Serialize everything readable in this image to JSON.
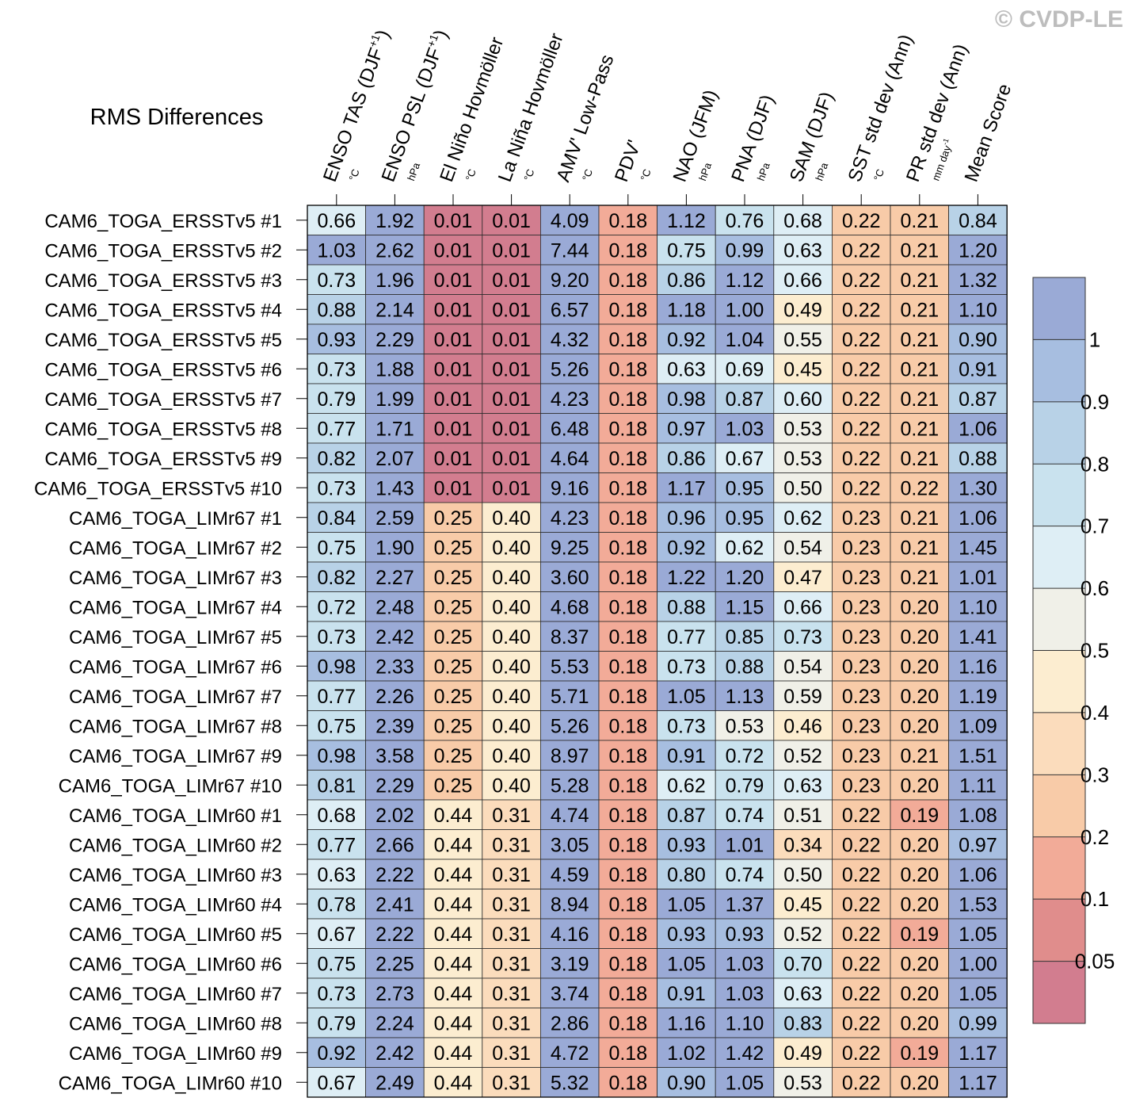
{
  "watermark": "© CVDP-LE",
  "chart_data": {
    "type": "heatmap",
    "title": "RMS Differences",
    "columns": [
      {
        "label": "ENSO TAS (DJF",
        "sup": "+1",
        "close": ")",
        "unit": "°C"
      },
      {
        "label": "ENSO PSL (DJF",
        "sup": "+1",
        "close": ")",
        "unit": "hPa"
      },
      {
        "label": "El Niño Hovmöller",
        "unit": "°C"
      },
      {
        "label": "La Niña Hovmöller",
        "unit": "°C"
      },
      {
        "label": "AMV' Low-Pass",
        "unit": "°C"
      },
      {
        "label": "PDV'",
        "unit": "°C"
      },
      {
        "label": "NAO (JFM)",
        "unit": "hPa"
      },
      {
        "label": "PNA (DJF)",
        "unit": "hPa"
      },
      {
        "label": "SAM (DJF)",
        "unit": "hPa"
      },
      {
        "label": "SST std dev (Ann)",
        "unit": "°C"
      },
      {
        "label": "PR std dev (Ann)",
        "unit": "mm day",
        "unit_sup": "-1"
      },
      {
        "label": "Mean Score",
        "unit": ""
      }
    ],
    "rows": [
      "CAM6_TOGA_ERSSTv5 #1",
      "CAM6_TOGA_ERSSTv5 #2",
      "CAM6_TOGA_ERSSTv5 #3",
      "CAM6_TOGA_ERSSTv5 #4",
      "CAM6_TOGA_ERSSTv5 #5",
      "CAM6_TOGA_ERSSTv5 #6",
      "CAM6_TOGA_ERSSTv5 #7",
      "CAM6_TOGA_ERSSTv5 #8",
      "CAM6_TOGA_ERSSTv5 #9",
      "CAM6_TOGA_ERSSTv5 #10",
      "CAM6_TOGA_LIMr67 #1",
      "CAM6_TOGA_LIMr67 #2",
      "CAM6_TOGA_LIMr67 #3",
      "CAM6_TOGA_LIMr67 #4",
      "CAM6_TOGA_LIMr67 #5",
      "CAM6_TOGA_LIMr67 #6",
      "CAM6_TOGA_LIMr67 #7",
      "CAM6_TOGA_LIMr67 #8",
      "CAM6_TOGA_LIMr67 #9",
      "CAM6_TOGA_LIMr67 #10",
      "CAM6_TOGA_LIMr60 #1",
      "CAM6_TOGA_LIMr60 #2",
      "CAM6_TOGA_LIMr60 #3",
      "CAM6_TOGA_LIMr60 #4",
      "CAM6_TOGA_LIMr60 #5",
      "CAM6_TOGA_LIMr60 #6",
      "CAM6_TOGA_LIMr60 #7",
      "CAM6_TOGA_LIMr60 #8",
      "CAM6_TOGA_LIMr60 #9",
      "CAM6_TOGA_LIMr60 #10"
    ],
    "values": [
      [
        "0.66",
        "1.92",
        "0.01",
        "0.01",
        "4.09",
        "0.18",
        "1.12",
        "0.76",
        "0.68",
        "0.22",
        "0.21",
        "0.84"
      ],
      [
        "1.03",
        "2.62",
        "0.01",
        "0.01",
        "7.44",
        "0.18",
        "0.75",
        "0.99",
        "0.63",
        "0.22",
        "0.21",
        "1.20"
      ],
      [
        "0.73",
        "1.96",
        "0.01",
        "0.01",
        "9.20",
        "0.18",
        "0.86",
        "1.12",
        "0.66",
        "0.22",
        "0.21",
        "1.32"
      ],
      [
        "0.88",
        "2.14",
        "0.01",
        "0.01",
        "6.57",
        "0.18",
        "1.18",
        "1.00",
        "0.49",
        "0.22",
        "0.21",
        "1.10"
      ],
      [
        "0.93",
        "2.29",
        "0.01",
        "0.01",
        "4.32",
        "0.18",
        "0.92",
        "1.04",
        "0.55",
        "0.22",
        "0.21",
        "0.90"
      ],
      [
        "0.73",
        "1.88",
        "0.01",
        "0.01",
        "5.26",
        "0.18",
        "0.63",
        "0.69",
        "0.45",
        "0.22",
        "0.21",
        "0.91"
      ],
      [
        "0.79",
        "1.99",
        "0.01",
        "0.01",
        "4.23",
        "0.18",
        "0.98",
        "0.87",
        "0.60",
        "0.22",
        "0.21",
        "0.87"
      ],
      [
        "0.77",
        "1.71",
        "0.01",
        "0.01",
        "6.48",
        "0.18",
        "0.97",
        "1.03",
        "0.53",
        "0.22",
        "0.21",
        "1.06"
      ],
      [
        "0.82",
        "2.07",
        "0.01",
        "0.01",
        "4.64",
        "0.18",
        "0.86",
        "0.67",
        "0.53",
        "0.22",
        "0.21",
        "0.88"
      ],
      [
        "0.73",
        "1.43",
        "0.01",
        "0.01",
        "9.16",
        "0.18",
        "1.17",
        "0.95",
        "0.50",
        "0.22",
        "0.22",
        "1.30"
      ],
      [
        "0.84",
        "2.59",
        "0.25",
        "0.40",
        "4.23",
        "0.18",
        "0.96",
        "0.95",
        "0.62",
        "0.23",
        "0.21",
        "1.06"
      ],
      [
        "0.75",
        "1.90",
        "0.25",
        "0.40",
        "9.25",
        "0.18",
        "0.92",
        "0.62",
        "0.54",
        "0.23",
        "0.21",
        "1.45"
      ],
      [
        "0.82",
        "2.27",
        "0.25",
        "0.40",
        "3.60",
        "0.18",
        "1.22",
        "1.20",
        "0.47",
        "0.23",
        "0.21",
        "1.01"
      ],
      [
        "0.72",
        "2.48",
        "0.25",
        "0.40",
        "4.68",
        "0.18",
        "0.88",
        "1.15",
        "0.66",
        "0.23",
        "0.20",
        "1.10"
      ],
      [
        "0.73",
        "2.42",
        "0.25",
        "0.40",
        "8.37",
        "0.18",
        "0.77",
        "0.85",
        "0.73",
        "0.23",
        "0.20",
        "1.41"
      ],
      [
        "0.98",
        "2.33",
        "0.25",
        "0.40",
        "5.53",
        "0.18",
        "0.73",
        "0.88",
        "0.54",
        "0.23",
        "0.20",
        "1.16"
      ],
      [
        "0.77",
        "2.26",
        "0.25",
        "0.40",
        "5.71",
        "0.18",
        "1.05",
        "1.13",
        "0.59",
        "0.23",
        "0.20",
        "1.19"
      ],
      [
        "0.75",
        "2.39",
        "0.25",
        "0.40",
        "5.26",
        "0.18",
        "0.73",
        "0.53",
        "0.46",
        "0.23",
        "0.20",
        "1.09"
      ],
      [
        "0.98",
        "3.58",
        "0.25",
        "0.40",
        "8.97",
        "0.18",
        "0.91",
        "0.72",
        "0.52",
        "0.23",
        "0.21",
        "1.51"
      ],
      [
        "0.81",
        "2.29",
        "0.25",
        "0.40",
        "5.28",
        "0.18",
        "0.62",
        "0.79",
        "0.63",
        "0.23",
        "0.20",
        "1.11"
      ],
      [
        "0.68",
        "2.02",
        "0.44",
        "0.31",
        "4.74",
        "0.18",
        "0.87",
        "0.74",
        "0.51",
        "0.22",
        "0.19",
        "1.08"
      ],
      [
        "0.77",
        "2.66",
        "0.44",
        "0.31",
        "3.05",
        "0.18",
        "0.93",
        "1.01",
        "0.34",
        "0.22",
        "0.20",
        "0.97"
      ],
      [
        "0.63",
        "2.22",
        "0.44",
        "0.31",
        "4.59",
        "0.18",
        "0.80",
        "0.74",
        "0.50",
        "0.22",
        "0.20",
        "1.06"
      ],
      [
        "0.78",
        "2.41",
        "0.44",
        "0.31",
        "8.94",
        "0.18",
        "1.05",
        "1.37",
        "0.45",
        "0.22",
        "0.20",
        "1.53"
      ],
      [
        "0.67",
        "2.22",
        "0.44",
        "0.31",
        "4.16",
        "0.18",
        "0.93",
        "0.93",
        "0.52",
        "0.22",
        "0.19",
        "1.05"
      ],
      [
        "0.75",
        "2.25",
        "0.44",
        "0.31",
        "3.19",
        "0.18",
        "1.05",
        "1.03",
        "0.70",
        "0.22",
        "0.20",
        "1.00"
      ],
      [
        "0.73",
        "2.73",
        "0.44",
        "0.31",
        "3.74",
        "0.18",
        "0.91",
        "1.03",
        "0.63",
        "0.22",
        "0.20",
        "1.05"
      ],
      [
        "0.79",
        "2.24",
        "0.44",
        "0.31",
        "2.86",
        "0.18",
        "1.16",
        "1.10",
        "0.83",
        "0.22",
        "0.20",
        "0.99"
      ],
      [
        "0.92",
        "2.42",
        "0.44",
        "0.31",
        "4.72",
        "0.18",
        "1.02",
        "1.42",
        "0.49",
        "0.22",
        "0.19",
        "1.17"
      ],
      [
        "0.67",
        "2.49",
        "0.44",
        "0.31",
        "5.32",
        "0.18",
        "0.90",
        "1.05",
        "0.53",
        "0.22",
        "0.20",
        "1.17"
      ]
    ],
    "colorbar": {
      "levels": [
        "0.05",
        "0.1",
        "0.2",
        "0.3",
        "0.4",
        "0.5",
        "0.6",
        "0.7",
        "0.8",
        "0.9",
        "1"
      ],
      "colors": [
        "#d27d8f",
        "#e08d8c",
        "#f2ab98",
        "#f8cba8",
        "#fbdcbc",
        "#fcedd0",
        "#f0f0e8",
        "#deeef5",
        "#c9e2ee",
        "#b8d2e7",
        "#a7bee0",
        "#9aaad6"
      ]
    }
  }
}
